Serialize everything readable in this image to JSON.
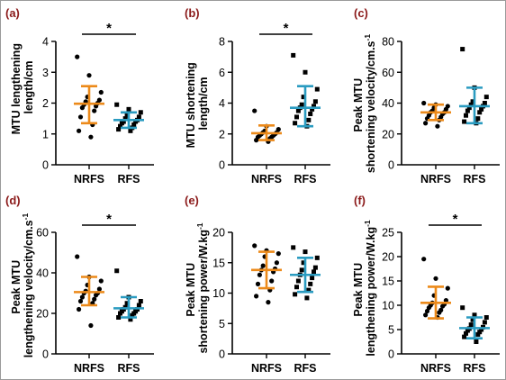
{
  "colors": {
    "nrfs": "#ec8a1a",
    "rfs": "#2a9bc0",
    "marker": "#000000",
    "panel_label": "#8b1a1a"
  },
  "chart_data": [
    {
      "panel": "(a)",
      "type": "scatter",
      "categories": [
        "NRFS",
        "RFS"
      ],
      "ylabel": [
        "MTU lengthening",
        "length/cm"
      ],
      "ylim": [
        0,
        4
      ],
      "yticks": [
        "0",
        "1",
        "2",
        "3",
        "4"
      ],
      "yticks_values": [
        0,
        1,
        2,
        3,
        4
      ],
      "significance": "*",
      "series": [
        {
          "marker": "circle",
          "mean": 1.98,
          "sd_low": 1.35,
          "sd_high": 2.55,
          "values": [
            3.5,
            2.9,
            2.35,
            2.2,
            2.1,
            2.05,
            2.0,
            1.95,
            1.9,
            1.85,
            1.75,
            1.55,
            1.3,
            1.1,
            0.9
          ]
        },
        {
          "marker": "square",
          "mean": 1.45,
          "sd_low": 1.2,
          "sd_high": 1.7,
          "values": [
            1.95,
            1.8,
            1.7,
            1.6,
            1.55,
            1.5,
            1.45,
            1.4,
            1.4,
            1.35,
            1.3,
            1.25,
            1.2,
            1.15,
            1.1
          ]
        }
      ]
    },
    {
      "panel": "(b)",
      "type": "scatter",
      "categories": [
        "NRFS",
        "RFS"
      ],
      "ylabel": [
        "MTU shortening",
        "length/cm"
      ],
      "ylim": [
        0,
        8
      ],
      "yticks": [
        "0",
        "2",
        "4",
        "6",
        "8"
      ],
      "yticks_values": [
        0,
        2,
        4,
        6,
        8
      ],
      "significance": "*",
      "series": [
        {
          "marker": "circle",
          "mean": 2.05,
          "sd_low": 1.6,
          "sd_high": 2.55,
          "values": [
            3.5,
            2.5,
            2.3,
            2.2,
            2.1,
            2.1,
            2.0,
            2.0,
            1.9,
            1.9,
            1.8,
            1.8,
            1.7,
            1.6,
            1.5
          ]
        },
        {
          "marker": "square",
          "mean": 3.7,
          "sd_low": 2.5,
          "sd_high": 5.1,
          "values": [
            7.1,
            6.0,
            4.9,
            4.4,
            4.1,
            3.9,
            3.8,
            3.7,
            3.6,
            3.5,
            3.3,
            3.1,
            2.9,
            2.7,
            2.5
          ]
        }
      ]
    },
    {
      "panel": "(c)",
      "type": "scatter",
      "categories": [
        "NRFS",
        "RFS"
      ],
      "ylabel": [
        "Peak MTU",
        "shortening velocity/cm.s",
        "-1"
      ],
      "ylim": [
        0,
        80
      ],
      "yticks": [
        "0",
        "20",
        "40",
        "60",
        "80"
      ],
      "yticks_values": [
        0,
        20,
        40,
        60,
        80
      ],
      "significance": "",
      "series": [
        {
          "marker": "circle",
          "mean": 34,
          "sd_low": 29,
          "sd_high": 39,
          "values": [
            40,
            39,
            38,
            37,
            36,
            35,
            34,
            34,
            33,
            32,
            31,
            30,
            29,
            27,
            25
          ]
        },
        {
          "marker": "square",
          "mean": 38,
          "sd_low": 27,
          "sd_high": 50,
          "values": [
            75,
            50,
            44,
            41,
            40,
            39,
            38,
            37,
            36,
            35,
            34,
            32,
            30,
            28,
            27
          ]
        }
      ]
    },
    {
      "panel": "(d)",
      "type": "scatter",
      "categories": [
        "NRFS",
        "RFS"
      ],
      "ylabel": [
        "Peak MTU",
        "lengthening velocity/cm.s",
        "-1"
      ],
      "ylim": [
        0,
        60
      ],
      "yticks": [
        "0",
        "20",
        "40",
        "60"
      ],
      "yticks_values": [
        0,
        20,
        40,
        60
      ],
      "significance": "*",
      "series": [
        {
          "marker": "circle",
          "mean": 30.5,
          "sd_low": 24,
          "sd_high": 38,
          "values": [
            48,
            38,
            36,
            34,
            32,
            31,
            30,
            30,
            29,
            28,
            27,
            26,
            25,
            22,
            14
          ]
        },
        {
          "marker": "square",
          "mean": 22.5,
          "sd_low": 18,
          "sd_high": 28,
          "values": [
            41,
            28,
            26,
            25,
            24,
            23,
            22,
            22,
            21,
            21,
            20,
            20,
            19,
            18,
            17
          ]
        }
      ]
    },
    {
      "panel": "(e)",
      "type": "scatter",
      "categories": [
        "NRFS",
        "RFS"
      ],
      "ylabel": [
        "Peak MTU",
        "shortening power/W.kg",
        "-1"
      ],
      "ylim": [
        0,
        20
      ],
      "yticks": [
        "0",
        "5",
        "10",
        "15",
        "20"
      ],
      "yticks_values": [
        0,
        5,
        10,
        15,
        20
      ],
      "significance": "",
      "series": [
        {
          "marker": "circle",
          "mean": 13.8,
          "sd_low": 10.8,
          "sd_high": 16.8,
          "values": [
            17.8,
            17.0,
            16.5,
            16.0,
            15.0,
            14.5,
            14.0,
            13.8,
            13.5,
            13.0,
            12.0,
            11.5,
            10.5,
            9.5,
            8.5
          ]
        },
        {
          "marker": "square",
          "mean": 13.0,
          "sd_low": 10.2,
          "sd_high": 15.8,
          "values": [
            17.5,
            16.8,
            15.8,
            15.0,
            14.2,
            13.8,
            13.5,
            13.0,
            12.5,
            12.0,
            11.5,
            11.0,
            10.5,
            9.8,
            9.2
          ]
        }
      ]
    },
    {
      "panel": "(f)",
      "type": "scatter",
      "categories": [
        "NRFS",
        "RFS"
      ],
      "ylabel": [
        "Peak MTU",
        "lengthening power/W.kg",
        "-1"
      ],
      "ylim": [
        0,
        25
      ],
      "yticks": [
        "0",
        "5",
        "10",
        "15",
        "20",
        "25"
      ],
      "yticks_values": [
        0,
        5,
        10,
        15,
        20,
        25
      ],
      "significance": "*",
      "series": [
        {
          "marker": "circle",
          "mean": 10.5,
          "sd_low": 7.3,
          "sd_high": 13.8,
          "values": [
            19.5,
            15.5,
            13.5,
            12.0,
            11.0,
            10.5,
            10.2,
            10.0,
            9.8,
            9.5,
            9.0,
            8.8,
            8.5,
            8.0,
            7.5
          ]
        },
        {
          "marker": "square",
          "mean": 5.3,
          "sd_low": 3.2,
          "sd_high": 7.5,
          "values": [
            9.5,
            8.0,
            7.5,
            7.0,
            6.5,
            6.0,
            5.5,
            5.2,
            5.0,
            4.8,
            4.5,
            4.2,
            4.0,
            3.5,
            2.5
          ]
        }
      ]
    }
  ]
}
